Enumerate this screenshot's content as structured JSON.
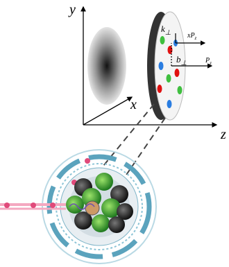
{
  "axes": {
    "y": "y",
    "x": "x",
    "z": "z"
  },
  "labels": [
    {
      "symbol": "k",
      "subscript": "⊥"
    },
    {
      "symbol": "xP",
      "subscript": "z"
    },
    {
      "symbol": "b",
      "subscript": "⊥"
    },
    {
      "symbol": "P",
      "subscript": "z"
    }
  ]
}
